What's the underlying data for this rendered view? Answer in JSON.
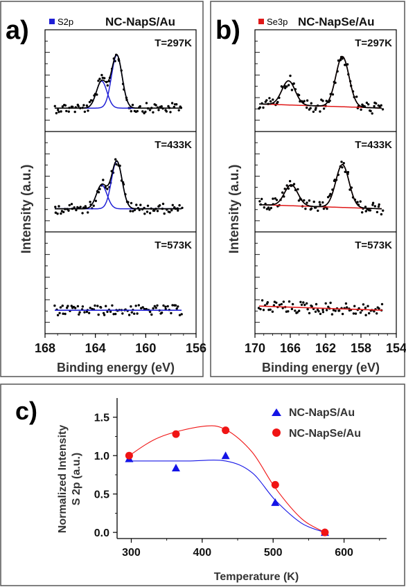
{
  "panel_a": {
    "letter": "a)",
    "legend": "S2p",
    "sample": "NC-NapS/Au",
    "xlabel": "Binding energy (eV)",
    "ylabel": "Intensity (a.u.)",
    "colors": {
      "component": "#1f1fd6",
      "envelope": "#000000",
      "points": "#000000"
    }
  },
  "panel_b": {
    "letter": "b)",
    "legend": "Se3p",
    "sample": "NC-NapSe/Au",
    "xlabel": "Binding energy (eV)",
    "ylabel": "Intensity (a.u.)",
    "colors": {
      "component": "#e01818",
      "envelope": "#000000",
      "points": "#000000"
    }
  },
  "panel_c": {
    "letter": "c)",
    "xlabel": "Temperature (K)",
    "ylabel_line1": "Normalized Intensity",
    "ylabel_line2": "S 2p (a.u.)",
    "legend": [
      "NC-NapS/Au",
      "NC-NapSe/Au"
    ]
  },
  "chart_data": [
    {
      "type": "scatter",
      "panel": "a",
      "xlabel": "Binding energy (eV)",
      "ylabel": "Intensity (a.u.)",
      "xlim": [
        168,
        156
      ],
      "xticks": [
        168,
        164,
        160,
        156
      ],
      "tick_labels": [
        "168",
        "164",
        "160",
        "156"
      ],
      "legend": "S2p",
      "subplots": [
        {
          "label": "T=297K",
          "components": [
            {
              "center": 162.3,
              "height": 0.55
            },
            {
              "center": 163.5,
              "height": 0.28
            }
          ]
        },
        {
          "label": "T=433K",
          "components": [
            {
              "center": 162.3,
              "height": 0.5
            },
            {
              "center": 163.5,
              "height": 0.25
            }
          ]
        },
        {
          "label": "T=573K",
          "components": []
        }
      ]
    },
    {
      "type": "scatter",
      "panel": "b",
      "xlabel": "Binding energy (eV)",
      "ylabel": "Intensity (a.u.)",
      "xlim": [
        170,
        154
      ],
      "xticks": [
        170,
        166,
        162,
        158,
        154
      ],
      "tick_labels": [
        "170",
        "166",
        "162",
        "158",
        "154"
      ],
      "legend": "Se3p",
      "subplots": [
        {
          "label": "T=297K",
          "components": [
            {
              "center": 166.2,
              "height": 0.25
            },
            {
              "center": 160.1,
              "height": 0.52
            }
          ]
        },
        {
          "label": "T=433K",
          "components": [
            {
              "center": 165.9,
              "height": 0.22
            },
            {
              "center": 160.1,
              "height": 0.45
            }
          ]
        },
        {
          "label": "T=573K",
          "components": []
        }
      ]
    },
    {
      "type": "scatter",
      "panel": "c",
      "xlabel": "Temperature (K)",
      "ylabel": "Normalized Intensity S 2p (a.u.)",
      "xlim": [
        280,
        660
      ],
      "ylim": [
        -0.08,
        1.75
      ],
      "xticks": [
        300,
        400,
        500,
        600
      ],
      "yticks": [
        0.0,
        0.5,
        1.0,
        1.5
      ],
      "xtick_labels": [
        "300",
        "400",
        "500",
        "600"
      ],
      "ytick_labels": [
        "0.0",
        "0.5",
        "1.0",
        "1.5"
      ],
      "series": [
        {
          "name": "NC-NapS/Au",
          "color": "#1414e6",
          "marker": "triangle",
          "x": [
            297,
            363,
            433,
            503,
            573
          ],
          "y": [
            0.96,
            0.84,
            1.0,
            0.39,
            0.0
          ]
        },
        {
          "name": "NC-NapSe/Au",
          "color": "#f01414",
          "marker": "circle",
          "x": [
            297,
            363,
            433,
            503,
            573
          ],
          "y": [
            1.0,
            1.28,
            1.33,
            0.62,
            0.0
          ]
        }
      ]
    }
  ]
}
